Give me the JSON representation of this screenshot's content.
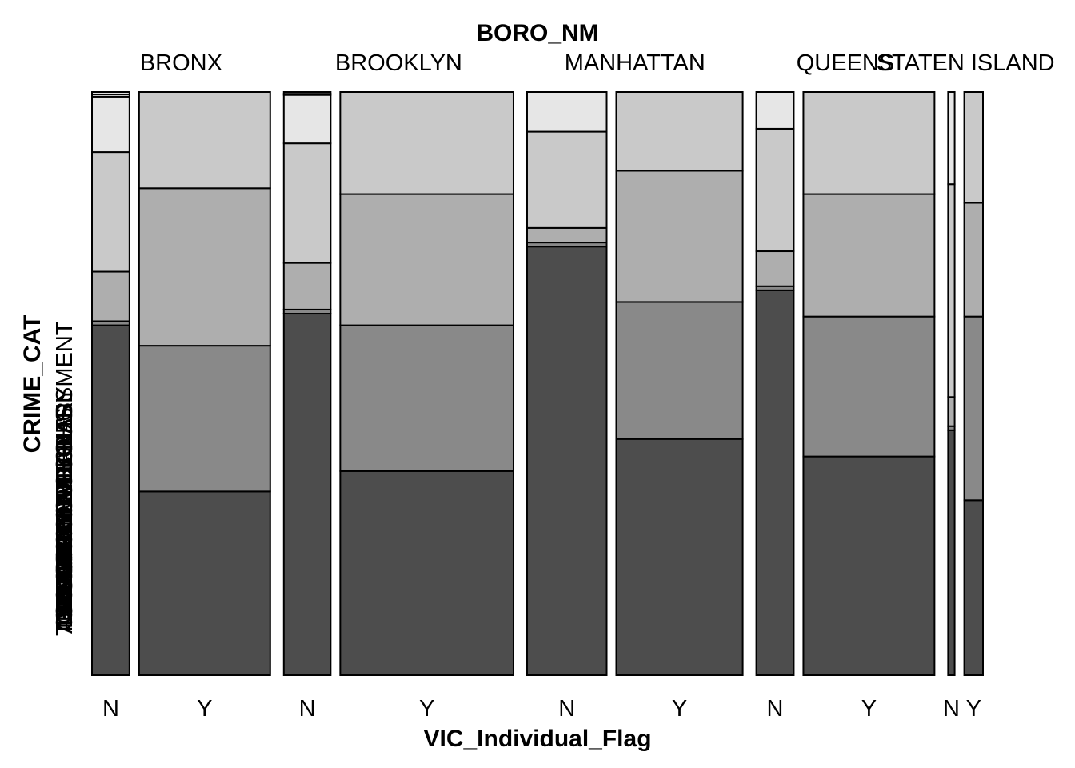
{
  "chart_data": {
    "type": "mosaic",
    "top_variable": "BORO_NM",
    "x_variable": "VIC_Individual_Flag",
    "y_variable": "CRIME_CAT",
    "boroughs": [
      "BRONX",
      "BROOKLYN",
      "MANHATTAN",
      "QUEENS",
      "STATEN ISLAND"
    ],
    "flags": [
      "N",
      "Y"
    ],
    "crime_categories_bottom_to_top": [
      "THEFT OR BURGLARY",
      "ASSAULT OR HARASSMENT",
      "CRIMINAL MISCHIEF",
      "DRUG AND ALCOHOL",
      "OTHER",
      "FRAUD",
      "SEX CRIME",
      "WEAPONS"
    ],
    "crime_category_labels_left_axis": [
      "THEFT OR BURGLARY",
      "ASSAULT OR HARASSMENT",
      "CRIMINAL MISCHIEF",
      "DRUG AND ALCOHOL",
      "DRUG RELATED",
      "OTHER",
      "FRAUD",
      "SEX CRIME",
      "WEAPONS",
      "TRAFFIC",
      "ELDER",
      "PUBLIC ORDER",
      "DISORDERLY",
      "MISCELLANEOUS"
    ],
    "colors": {
      "THEFT OR BURGLARY": "#4d4d4d",
      "ASSAULT OR HARASSMENT": "#898989",
      "CRIMINAL MISCHIEF": "#aeaeae",
      "DRUG AND ALCOHOL": "#c9c9c9",
      "OTHER": "#d9d9d9",
      "FRAUD": "#e6e6e6",
      "SEX CRIME": "#eeeeee",
      "WEAPONS": "#f4f4f4"
    },
    "cells": [
      {
        "boro": "BRONX",
        "flag": "N",
        "share": 0.08,
        "proportions_bottom_to_top": [
          0.6,
          0.007,
          0.085,
          0.205,
          0.0,
          0.095,
          0.004,
          0.004
        ]
      },
      {
        "boro": "BRONX",
        "flag": "Y",
        "share": 0.28,
        "proportions_bottom_to_top": [
          0.315,
          0.25,
          0.27,
          0.165,
          0.0,
          0.0,
          0.0,
          0.0
        ]
      },
      {
        "boro": "BROOKLYN",
        "flag": "N",
        "share": 0.1,
        "proportions_bottom_to_top": [
          0.62,
          0.007,
          0.08,
          0.205,
          0.0,
          0.083,
          0.002,
          0.003
        ]
      },
      {
        "boro": "BROOKLYN",
        "flag": "Y",
        "share": 0.37,
        "proportions_bottom_to_top": [
          0.35,
          0.25,
          0.225,
          0.175,
          0.0,
          0.0,
          0.0,
          0.0
        ]
      },
      {
        "boro": "MANHATTAN",
        "flag": "N",
        "share": 0.17,
        "proportions_bottom_to_top": [
          0.735,
          0.007,
          0.025,
          0.165,
          0.0,
          0.068,
          0.0,
          0.0
        ]
      },
      {
        "boro": "MANHATTAN",
        "flag": "Y",
        "share": 0.27,
        "proportions_bottom_to_top": [
          0.405,
          0.235,
          0.225,
          0.135,
          0.0,
          0.0,
          0.0,
          0.0
        ]
      },
      {
        "boro": "QUEENS",
        "flag": "N",
        "share": 0.08,
        "proportions_bottom_to_top": [
          0.66,
          0.007,
          0.06,
          0.21,
          0.0,
          0.063,
          0.0,
          0.0
        ]
      },
      {
        "boro": "QUEENS",
        "flag": "Y",
        "share": 0.28,
        "proportions_bottom_to_top": [
          0.375,
          0.24,
          0.21,
          0.175,
          0.0,
          0.0,
          0.0,
          0.0
        ]
      },
      {
        "boro": "STATEN ISLAND",
        "flag": "N",
        "share": 0.014,
        "proportions_bottom_to_top": [
          0.42,
          0.007,
          0.05,
          0.365,
          0.0,
          0.158,
          0.0,
          0.0
        ]
      },
      {
        "boro": "STATEN ISLAND",
        "flag": "Y",
        "share": 0.04,
        "proportions_bottom_to_top": [
          0.3,
          0.315,
          0.195,
          0.19,
          0.0,
          0.0,
          0.0,
          0.0
        ]
      }
    ],
    "legend": "none",
    "grid": false
  }
}
